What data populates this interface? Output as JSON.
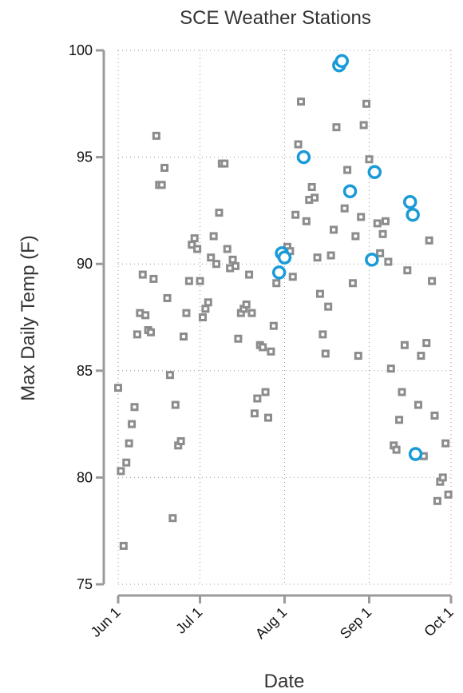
{
  "chart_data": {
    "type": "scatter",
    "title": "SCE Weather Stations",
    "xlabel": "Date",
    "ylabel": "Max Daily Temp (F)",
    "xlim": [
      "2023-06-01",
      "2023-10-01"
    ],
    "ylim": [
      75,
      100
    ],
    "x_ticks": [
      {
        "date": "2023-06-01",
        "label": "Jun 1"
      },
      {
        "date": "2023-07-01",
        "label": "Jul 1"
      },
      {
        "date": "2023-08-01",
        "label": "Aug 1"
      },
      {
        "date": "2023-09-01",
        "label": "Sep 1"
      },
      {
        "date": "2023-10-01",
        "label": "Oct 1"
      }
    ],
    "y_ticks": [
      75,
      80,
      85,
      90,
      95,
      100
    ],
    "grid": true,
    "series": [
      {
        "marker": "square",
        "color": "#8c8c8c",
        "points": [
          {
            "x": "2023-06-01",
            "y": 84.2
          },
          {
            "x": "2023-06-02",
            "y": 80.3
          },
          {
            "x": "2023-06-03",
            "y": 76.8
          },
          {
            "x": "2023-06-04",
            "y": 80.7
          },
          {
            "x": "2023-06-05",
            "y": 81.6
          },
          {
            "x": "2023-06-06",
            "y": 82.5
          },
          {
            "x": "2023-06-07",
            "y": 83.3
          },
          {
            "x": "2023-06-08",
            "y": 86.7
          },
          {
            "x": "2023-06-09",
            "y": 87.7
          },
          {
            "x": "2023-06-10",
            "y": 89.5
          },
          {
            "x": "2023-06-11",
            "y": 87.6
          },
          {
            "x": "2023-06-12",
            "y": 86.9
          },
          {
            "x": "2023-06-13",
            "y": 86.8
          },
          {
            "x": "2023-06-14",
            "y": 89.3
          },
          {
            "x": "2023-06-15",
            "y": 96.0
          },
          {
            "x": "2023-06-16",
            "y": 93.7
          },
          {
            "x": "2023-06-17",
            "y": 93.7
          },
          {
            "x": "2023-06-18",
            "y": 94.5
          },
          {
            "x": "2023-06-19",
            "y": 88.4
          },
          {
            "x": "2023-06-20",
            "y": 84.8
          },
          {
            "x": "2023-06-21",
            "y": 78.1
          },
          {
            "x": "2023-06-22",
            "y": 83.4
          },
          {
            "x": "2023-06-23",
            "y": 81.5
          },
          {
            "x": "2023-06-24",
            "y": 81.7
          },
          {
            "x": "2023-06-25",
            "y": 86.6
          },
          {
            "x": "2023-06-26",
            "y": 87.7
          },
          {
            "x": "2023-06-27",
            "y": 89.2
          },
          {
            "x": "2023-06-28",
            "y": 90.9
          },
          {
            "x": "2023-06-29",
            "y": 91.2
          },
          {
            "x": "2023-06-30",
            "y": 90.7
          },
          {
            "x": "2023-07-01",
            "y": 89.2
          },
          {
            "x": "2023-07-02",
            "y": 87.5
          },
          {
            "x": "2023-07-03",
            "y": 87.9
          },
          {
            "x": "2023-07-04",
            "y": 88.2
          },
          {
            "x": "2023-07-05",
            "y": 90.3
          },
          {
            "x": "2023-07-06",
            "y": 91.3
          },
          {
            "x": "2023-07-07",
            "y": 90.0
          },
          {
            "x": "2023-07-08",
            "y": 92.4
          },
          {
            "x": "2023-07-09",
            "y": 94.7
          },
          {
            "x": "2023-07-10",
            "y": 94.7
          },
          {
            "x": "2023-07-11",
            "y": 90.7
          },
          {
            "x": "2023-07-12",
            "y": 89.8
          },
          {
            "x": "2023-07-13",
            "y": 90.2
          },
          {
            "x": "2023-07-14",
            "y": 89.9
          },
          {
            "x": "2023-07-15",
            "y": 86.5
          },
          {
            "x": "2023-07-16",
            "y": 87.7
          },
          {
            "x": "2023-07-17",
            "y": 87.9
          },
          {
            "x": "2023-07-18",
            "y": 88.1
          },
          {
            "x": "2023-07-19",
            "y": 89.5
          },
          {
            "x": "2023-07-20",
            "y": 87.7
          },
          {
            "x": "2023-07-21",
            "y": 83.0
          },
          {
            "x": "2023-07-22",
            "y": 83.7
          },
          {
            "x": "2023-07-23",
            "y": 86.2
          },
          {
            "x": "2023-07-24",
            "y": 86.1
          },
          {
            "x": "2023-07-25",
            "y": 84.0
          },
          {
            "x": "2023-07-26",
            "y": 82.8
          },
          {
            "x": "2023-07-27",
            "y": 85.9
          },
          {
            "x": "2023-07-28",
            "y": 87.1
          },
          {
            "x": "2023-07-29",
            "y": 89.1
          },
          {
            "x": "2023-08-02",
            "y": 90.8
          },
          {
            "x": "2023-08-03",
            "y": 90.6
          },
          {
            "x": "2023-08-04",
            "y": 89.4
          },
          {
            "x": "2023-08-05",
            "y": 92.3
          },
          {
            "x": "2023-08-06",
            "y": 95.6
          },
          {
            "x": "2023-08-07",
            "y": 97.6
          },
          {
            "x": "2023-08-09",
            "y": 92.0
          },
          {
            "x": "2023-08-10",
            "y": 93.0
          },
          {
            "x": "2023-08-11",
            "y": 93.6
          },
          {
            "x": "2023-08-12",
            "y": 93.1
          },
          {
            "x": "2023-08-13",
            "y": 90.3
          },
          {
            "x": "2023-08-14",
            "y": 88.6
          },
          {
            "x": "2023-08-15",
            "y": 86.7
          },
          {
            "x": "2023-08-16",
            "y": 85.8
          },
          {
            "x": "2023-08-17",
            "y": 88.0
          },
          {
            "x": "2023-08-18",
            "y": 90.4
          },
          {
            "x": "2023-08-19",
            "y": 91.6
          },
          {
            "x": "2023-08-20",
            "y": 96.4
          },
          {
            "x": "2023-08-23",
            "y": 92.6
          },
          {
            "x": "2023-08-24",
            "y": 94.4
          },
          {
            "x": "2023-08-26",
            "y": 89.1
          },
          {
            "x": "2023-08-27",
            "y": 91.3
          },
          {
            "x": "2023-08-28",
            "y": 85.7
          },
          {
            "x": "2023-08-29",
            "y": 92.2
          },
          {
            "x": "2023-08-30",
            "y": 96.5
          },
          {
            "x": "2023-08-31",
            "y": 97.5
          },
          {
            "x": "2023-09-01",
            "y": 94.9
          },
          {
            "x": "2023-09-04",
            "y": 91.9
          },
          {
            "x": "2023-09-05",
            "y": 90.5
          },
          {
            "x": "2023-09-06",
            "y": 91.4
          },
          {
            "x": "2023-09-07",
            "y": 92.0
          },
          {
            "x": "2023-09-08",
            "y": 90.1
          },
          {
            "x": "2023-09-09",
            "y": 85.1
          },
          {
            "x": "2023-09-10",
            "y": 81.5
          },
          {
            "x": "2023-09-11",
            "y": 81.3
          },
          {
            "x": "2023-09-12",
            "y": 82.7
          },
          {
            "x": "2023-09-13",
            "y": 84.0
          },
          {
            "x": "2023-09-14",
            "y": 86.2
          },
          {
            "x": "2023-09-15",
            "y": 89.7
          },
          {
            "x": "2023-09-19",
            "y": 83.4
          },
          {
            "x": "2023-09-20",
            "y": 85.7
          },
          {
            "x": "2023-09-21",
            "y": 81.0
          },
          {
            "x": "2023-09-22",
            "y": 86.3
          },
          {
            "x": "2023-09-23",
            "y": 91.1
          },
          {
            "x": "2023-09-24",
            "y": 89.2
          },
          {
            "x": "2023-09-25",
            "y": 82.9
          },
          {
            "x": "2023-09-26",
            "y": 78.9
          },
          {
            "x": "2023-09-27",
            "y": 79.8
          },
          {
            "x": "2023-09-28",
            "y": 80.0
          },
          {
            "x": "2023-09-29",
            "y": 81.6
          },
          {
            "x": "2023-09-30",
            "y": 79.2
          }
        ]
      },
      {
        "marker": "circle",
        "color": "#1a9bd7",
        "points": [
          {
            "x": "2023-07-30",
            "y": 89.6
          },
          {
            "x": "2023-07-31",
            "y": 90.5
          },
          {
            "x": "2023-08-01",
            "y": 90.3
          },
          {
            "x": "2023-08-08",
            "y": 95.0
          },
          {
            "x": "2023-08-21",
            "y": 99.3
          },
          {
            "x": "2023-08-22",
            "y": 99.5
          },
          {
            "x": "2023-08-25",
            "y": 93.4
          },
          {
            "x": "2023-09-02",
            "y": 90.2
          },
          {
            "x": "2023-09-03",
            "y": 94.3
          },
          {
            "x": "2023-09-16",
            "y": 92.9
          },
          {
            "x": "2023-09-17",
            "y": 92.3
          },
          {
            "x": "2023-09-18",
            "y": 81.1
          }
        ]
      }
    ]
  }
}
